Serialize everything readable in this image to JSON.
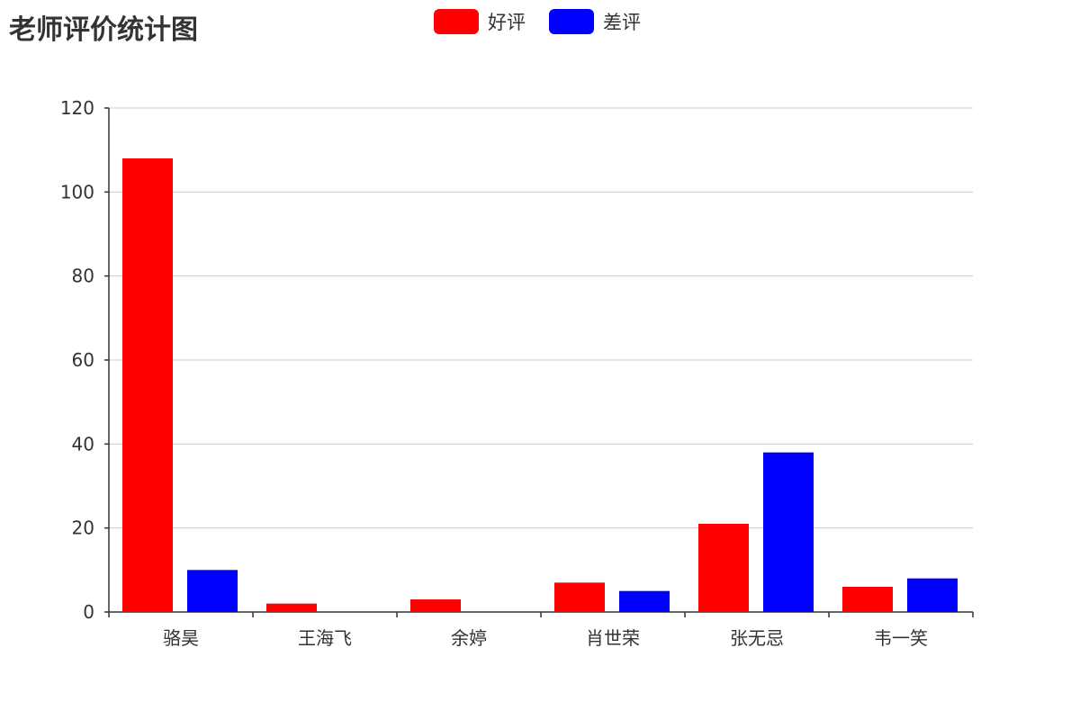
{
  "title": "老师评价统计图",
  "chart_data": {
    "type": "bar",
    "title": "老师评价统计图",
    "categories": [
      "骆昊",
      "王海飞",
      "余婷",
      "肖世荣",
      "张无忌",
      "韦一笑"
    ],
    "series": [
      {
        "name": "好评",
        "color": "#ff0000",
        "values": [
          108,
          2,
          3,
          7,
          21,
          6
        ]
      },
      {
        "name": "差评",
        "color": "#0000ff",
        "values": [
          10,
          0,
          0,
          5,
          38,
          8
        ]
      }
    ],
    "ylim": [
      0,
      120
    ],
    "yticks": [
      0,
      20,
      40,
      60,
      80,
      100,
      120
    ],
    "grid": true,
    "legend": "top-center",
    "xlabel": "",
    "ylabel": ""
  }
}
